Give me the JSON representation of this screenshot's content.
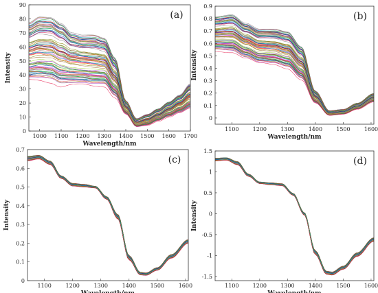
{
  "chart_data": [
    {
      "panel": "(a)",
      "type": "line",
      "xlabel": "Wavelength/nm",
      "ylabel": "Intensity",
      "xlim": [
        950,
        1700
      ],
      "ylim": [
        0,
        90
      ],
      "xticks": [
        1000,
        1100,
        1200,
        1300,
        1400,
        1500,
        1600,
        1700
      ],
      "yticks": [
        0,
        10,
        20,
        30,
        40,
        50,
        60,
        70,
        80,
        90
      ],
      "series_count": 90,
      "envelope": {
        "x": [
          950,
          1000,
          1050,
          1100,
          1150,
          1200,
          1250,
          1300,
          1350,
          1400,
          1450,
          1500,
          1550,
          1600,
          1650,
          1700
        ],
        "low": [
          36,
          36,
          35,
          32,
          33,
          33,
          32,
          32,
          24,
          12,
          3,
          4,
          7,
          10,
          13,
          16
        ],
        "high": [
          78,
          82,
          82,
          78,
          71,
          69,
          69,
          67,
          53,
          22,
          9,
          12,
          16,
          21,
          26,
          34
        ]
      }
    },
    {
      "panel": "(b)",
      "type": "line",
      "xlabel": "Wavelength/nm",
      "ylabel": "Intensity",
      "xlim": [
        1040,
        1610
      ],
      "ylim": [
        -0.05,
        0.9
      ],
      "xticks": [
        1100,
        1200,
        1300,
        1400,
        1500,
        1600
      ],
      "yticks": [
        0,
        0.1,
        0.2,
        0.3,
        0.4,
        0.5,
        0.6,
        0.7,
        0.8,
        0.9
      ],
      "series_count": 90,
      "envelope": {
        "x": [
          1040,
          1100,
          1150,
          1200,
          1250,
          1300,
          1350,
          1400,
          1450,
          1500,
          1550,
          1610
        ],
        "low": [
          0.54,
          0.53,
          0.48,
          0.44,
          0.43,
          0.4,
          0.31,
          0.12,
          0.02,
          0.03,
          0.07,
          0.13
        ],
        "high": [
          0.82,
          0.84,
          0.77,
          0.72,
          0.72,
          0.7,
          0.58,
          0.22,
          0.06,
          0.07,
          0.12,
          0.2
        ]
      }
    },
    {
      "panel": "(c)",
      "type": "line",
      "xlabel": "Wavelength/nm",
      "ylabel": "Intensity",
      "xlim": [
        1040,
        1610
      ],
      "ylim": [
        0,
        0.7
      ],
      "xticks": [
        1100,
        1200,
        1300,
        1400,
        1500,
        1600
      ],
      "yticks": [
        0,
        0.1,
        0.2,
        0.3,
        0.4,
        0.5,
        0.6,
        0.7
      ],
      "series_count": 90,
      "envelope": {
        "x": [
          1040,
          1080,
          1120,
          1160,
          1200,
          1240,
          1280,
          1320,
          1360,
          1400,
          1440,
          1460,
          1500,
          1550,
          1610
        ],
        "low": [
          0.64,
          0.65,
          0.62,
          0.545,
          0.505,
          0.5,
          0.495,
          0.435,
          0.33,
          0.11,
          0.03,
          0.028,
          0.055,
          0.12,
          0.2
        ],
        "high": [
          0.665,
          0.67,
          0.64,
          0.56,
          0.52,
          0.515,
          0.505,
          0.45,
          0.355,
          0.135,
          0.045,
          0.042,
          0.07,
          0.14,
          0.22
        ]
      }
    },
    {
      "panel": "(d)",
      "type": "line",
      "xlabel": "Wavelength/nm",
      "ylabel": "Intensity",
      "xlim": [
        1040,
        1610
      ],
      "ylim": [
        -1.6,
        1.5
      ],
      "xticks": [
        1100,
        1200,
        1300,
        1400,
        1500,
        1600
      ],
      "yticks": [
        -1.5,
        -1,
        -0.5,
        0,
        0.5,
        1,
        1.5
      ],
      "series_count": 90,
      "envelope": {
        "x": [
          1040,
          1080,
          1120,
          1160,
          1200,
          1240,
          1280,
          1320,
          1360,
          1400,
          1440,
          1460,
          1500,
          1550,
          1610
        ],
        "low": [
          1.26,
          1.28,
          1.17,
          0.89,
          0.72,
          0.69,
          0.67,
          0.44,
          -0.03,
          -0.98,
          -1.45,
          -1.47,
          -1.33,
          -1.02,
          -0.66
        ],
        "high": [
          1.33,
          1.34,
          1.25,
          0.95,
          0.76,
          0.74,
          0.72,
          0.49,
          0.03,
          -0.88,
          -1.37,
          -1.39,
          -1.25,
          -0.93,
          -0.57
        ]
      }
    }
  ]
}
